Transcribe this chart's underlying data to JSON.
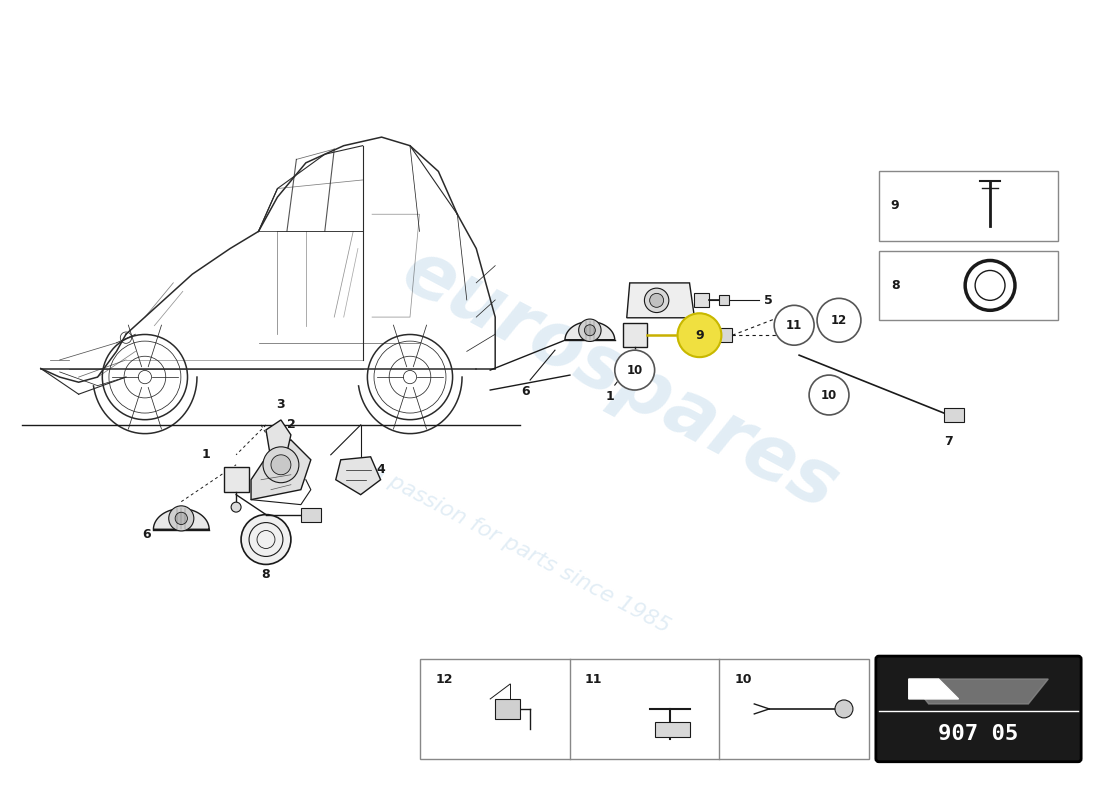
{
  "bg_color": "#ffffff",
  "line_color": "#1a1a1a",
  "watermark_color": "#b8d4e8",
  "watermark_alpha": 0.4,
  "circle_fill_yellow": "#f0e040",
  "circle_outline_yellow": "#c8b800",
  "circle_fill_white": "#ffffff",
  "circle_outline_gray": "#555555",
  "legend_border": "#888888",
  "pn_bg": "#1a1a1a",
  "pn_text": "#ffffff",
  "part_number": "907 05",
  "watermark1": "eurospares",
  "watermark2": "a passion for parts since 1985",
  "car_color": "#2a2a2a",
  "part_labels": [
    "1",
    "2",
    "3",
    "4",
    "5",
    "6",
    "7",
    "8",
    "9",
    "10",
    "11",
    "12"
  ]
}
